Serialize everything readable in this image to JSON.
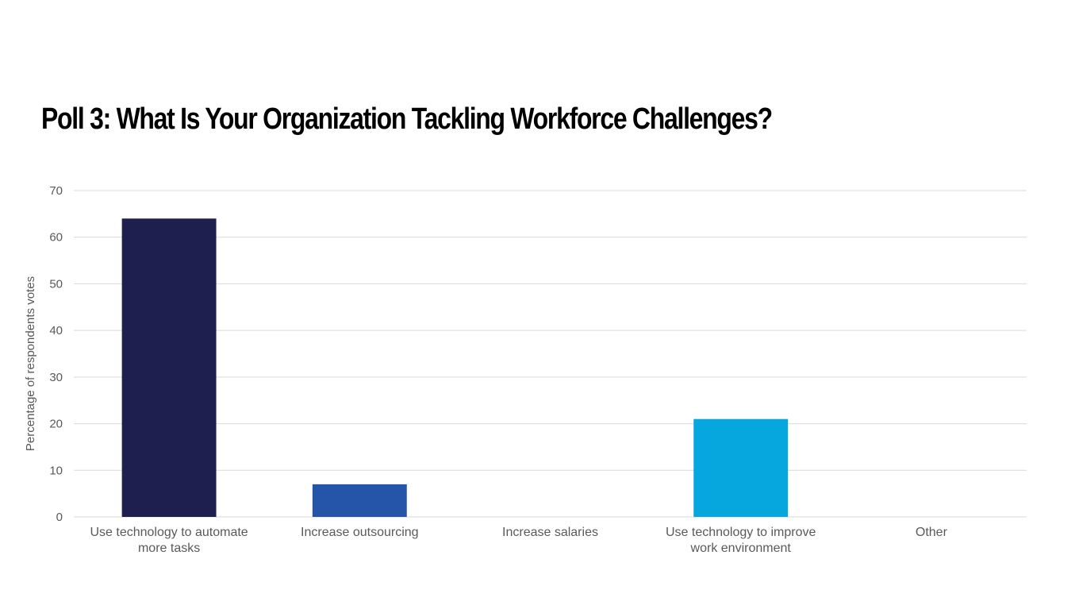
{
  "slide": {
    "title": "Poll 3: What Is Your Organization Tackling Workforce Challenges?"
  },
  "chart_data": {
    "type": "bar",
    "categories": [
      [
        "Use technology to automate",
        "more tasks"
      ],
      [
        "Increase outsourcing"
      ],
      [
        "Increase salaries"
      ],
      [
        "Use technology to improve",
        "work environment"
      ],
      [
        "Other"
      ]
    ],
    "values": [
      64,
      7,
      0,
      21,
      0
    ],
    "bar_colors": [
      "#1f1f4f",
      "#2455a8",
      "#2455a8",
      "#06a6df",
      "#06a6df"
    ],
    "title": "Poll 3: What Is Your Organization Tackling Workforce Challenges?",
    "xlabel": "",
    "ylabel": "Percentage of respondents votes",
    "ylim": [
      0,
      70
    ],
    "yticks": [
      0,
      10,
      20,
      30,
      40,
      50,
      60,
      70
    ],
    "grid": true,
    "legend": "none",
    "gridline_color": "#d9d9d9",
    "label_color": "#595959"
  }
}
